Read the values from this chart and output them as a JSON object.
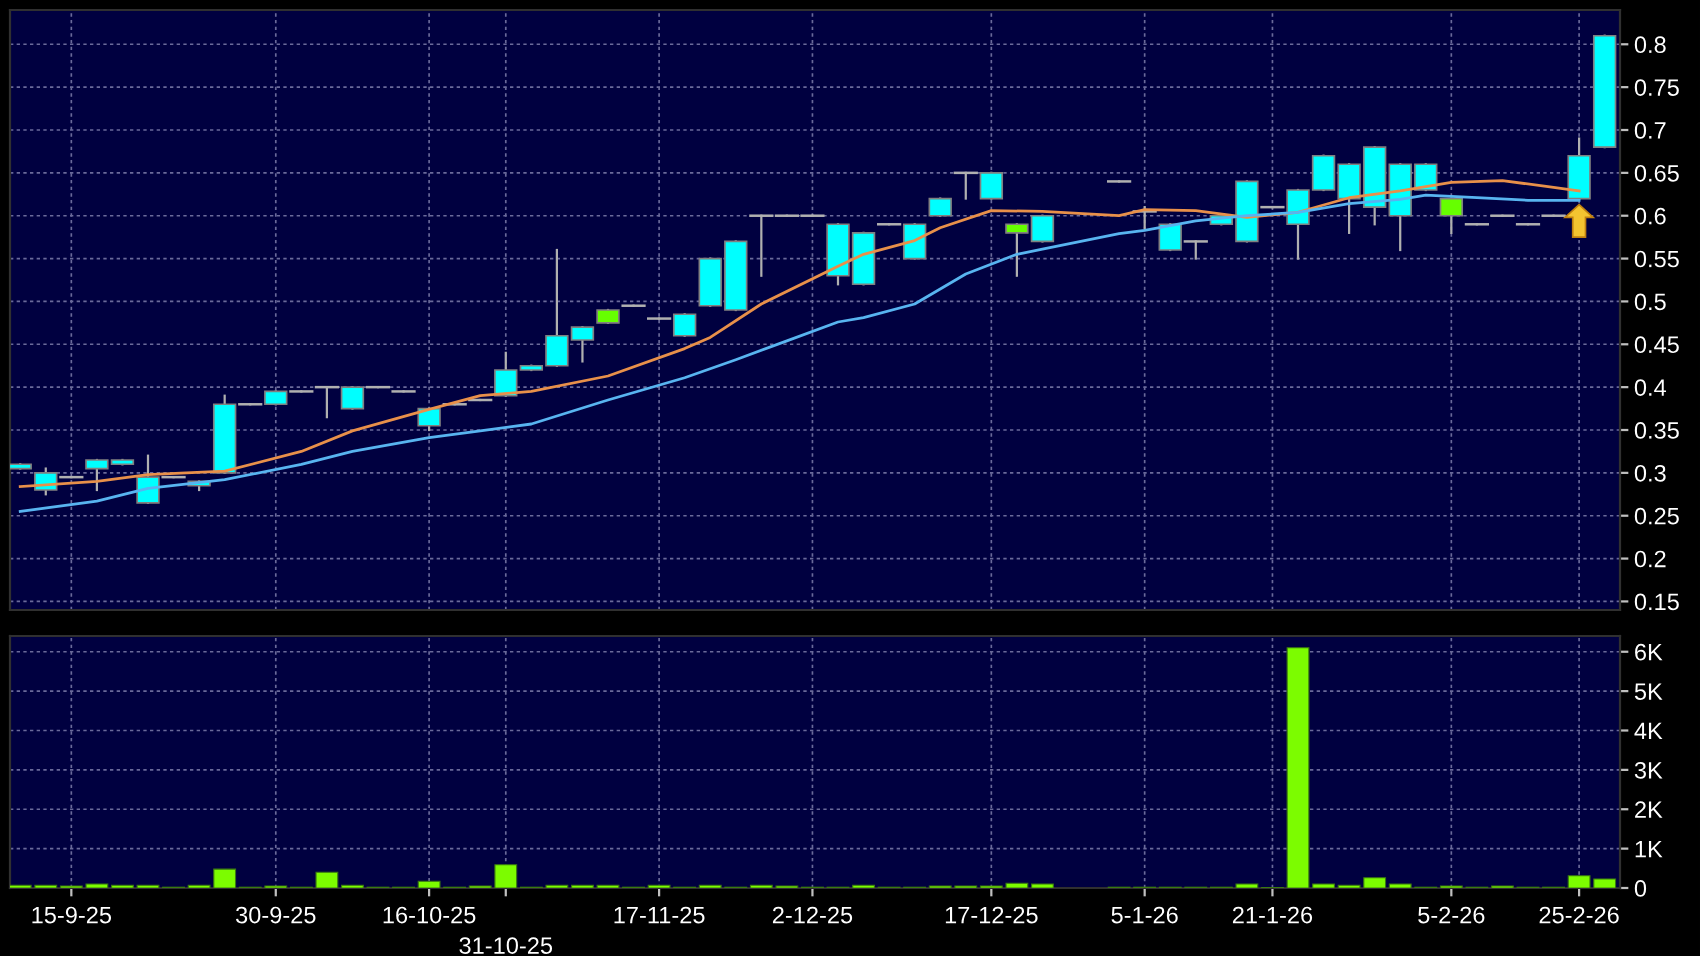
{
  "chart_data": [
    {
      "type": "candlestick",
      "categories": [
        null,
        null,
        null,
        null,
        null,
        null,
        null,
        null,
        null,
        null,
        null,
        null,
        null,
        null,
        null,
        null,
        null,
        null,
        null,
        null,
        null,
        null,
        null,
        null,
        null,
        null,
        null,
        null,
        null,
        null,
        null,
        null,
        null,
        null,
        null,
        null,
        null,
        null,
        null,
        null,
        null,
        null,
        null,
        null,
        null,
        null,
        null,
        null,
        null,
        null,
        null,
        null,
        null,
        null,
        null,
        null,
        null,
        null,
        null,
        null,
        null,
        null,
        null
      ],
      "ohlc": [
        [
          0.305,
          0.31,
          0.305,
          0.31
        ],
        [
          0.28,
          0.305,
          0.275,
          0.3
        ],
        [
          0.295,
          0.295,
          0.295,
          0.295
        ],
        [
          0.305,
          0.315,
          0.28,
          0.315
        ],
        [
          0.31,
          0.315,
          0.31,
          0.315
        ],
        [
          0.265,
          0.32,
          0.265,
          0.295
        ],
        [
          0.295,
          0.295,
          0.295,
          0.295
        ],
        [
          0.285,
          0.29,
          0.28,
          0.29
        ],
        [
          0.3,
          0.39,
          0.3,
          0.38
        ],
        [
          0.38,
          0.38,
          0.38,
          0.38
        ],
        [
          0.38,
          0.395,
          0.38,
          0.395
        ],
        [
          0.395,
          0.395,
          0.395,
          0.395
        ],
        [
          0.4,
          0.4,
          0.365,
          0.4
        ],
        [
          0.375,
          0.4,
          0.375,
          0.4
        ],
        [
          0.4,
          0.4,
          0.4,
          0.4
        ],
        [
          0.395,
          0.395,
          0.395,
          0.395
        ],
        [
          0.355,
          0.375,
          0.35,
          0.375
        ],
        [
          0.38,
          0.38,
          0.38,
          0.38
        ],
        [
          0.385,
          0.385,
          0.385,
          0.385
        ],
        [
          0.39,
          0.44,
          0.39,
          0.42
        ],
        [
          0.42,
          0.425,
          0.42,
          0.425
        ],
        [
          0.425,
          0.56,
          0.425,
          0.46
        ],
        [
          0.455,
          0.47,
          0.43,
          0.47
        ],
        [
          0.49,
          0.49,
          0.475,
          0.475
        ],
        [
          0.495,
          0.495,
          0.495,
          0.495
        ],
        [
          0.48,
          0.48,
          0.48,
          0.48
        ],
        [
          0.46,
          0.485,
          0.46,
          0.485
        ],
        [
          0.495,
          0.55,
          0.495,
          0.55
        ],
        [
          0.49,
          0.57,
          0.49,
          0.57
        ],
        [
          0.6,
          0.6,
          0.53,
          0.6
        ],
        [
          0.6,
          0.6,
          0.6,
          0.6
        ],
        [
          0.6,
          0.6,
          0.6,
          0.6
        ],
        [
          0.53,
          0.59,
          0.52,
          0.59
        ],
        [
          0.52,
          0.58,
          0.52,
          0.58
        ],
        [
          0.59,
          0.59,
          0.59,
          0.59
        ],
        [
          0.55,
          0.59,
          0.55,
          0.59
        ],
        [
          0.6,
          0.62,
          0.6,
          0.62
        ],
        [
          0.65,
          0.65,
          0.62,
          0.65
        ],
        [
          0.62,
          0.65,
          0.62,
          0.65
        ],
        [
          0.59,
          0.59,
          0.53,
          0.58
        ],
        [
          0.57,
          0.6,
          0.57,
          0.6
        ],
        null,
        null,
        [
          0.64,
          0.64,
          0.64,
          0.64
        ],
        [
          0.605,
          0.61,
          0.585,
          0.605
        ],
        [
          0.56,
          0.59,
          0.56,
          0.59
        ],
        [
          0.57,
          0.57,
          0.55,
          0.57
        ],
        [
          0.59,
          0.6,
          0.59,
          0.6
        ],
        [
          0.57,
          0.64,
          0.57,
          0.64
        ],
        [
          0.61,
          0.61,
          0.61,
          0.61
        ],
        [
          0.59,
          0.63,
          0.55,
          0.63
        ],
        [
          0.63,
          0.67,
          0.63,
          0.67
        ],
        [
          0.62,
          0.66,
          0.58,
          0.66
        ],
        [
          0.61,
          0.68,
          0.59,
          0.68
        ],
        [
          0.6,
          0.66,
          0.56,
          0.66
        ],
        [
          0.63,
          0.66,
          0.63,
          0.66
        ],
        [
          0.62,
          0.62,
          0.58,
          0.6
        ],
        [
          0.59,
          0.59,
          0.59,
          0.59
        ],
        [
          0.6,
          0.6,
          0.6,
          0.6
        ],
        [
          0.59,
          0.59,
          0.59,
          0.59
        ],
        [
          0.6,
          0.6,
          0.6,
          0.6
        ],
        [
          0.62,
          0.69,
          0.62,
          0.67
        ],
        [
          0.68,
          0.81,
          0.68,
          0.81
        ]
      ],
      "colors": [
        "#00ffff",
        "#00ffff",
        "#b0b0b0",
        "#00ffff",
        "#00ffff",
        "#00ffff",
        "#b0b0b0",
        "#00ffff",
        "#00ffff",
        "#b0b0b0",
        "#00ffff",
        "#b0b0b0",
        "#b0b0b0",
        "#00ffff",
        "#b0b0b0",
        "#b0b0b0",
        "#00ffff",
        "#b0b0b0",
        "#b0b0b0",
        "#00ffff",
        "#00ffff",
        "#00ffff",
        "#00ffff",
        "#66ff00",
        "#b0b0b0",
        "#b0b0b0",
        "#00ffff",
        "#00ffff",
        "#00ffff",
        "#b0b0b0",
        "#b0b0b0",
        "#b0b0b0",
        "#00ffff",
        "#00ffff",
        "#b0b0b0",
        "#00ffff",
        "#00ffff",
        "#b0b0b0",
        "#00ffff",
        "#66ff00",
        "#00ffff",
        null,
        null,
        "#b0b0b0",
        "#b0b0b0",
        "#00ffff",
        "#b0b0b0",
        "#00ffff",
        "#00ffff",
        "#b0b0b0",
        "#00ffff",
        "#00ffff",
        "#00ffff",
        "#00ffff",
        "#00ffff",
        "#00ffff",
        "#66ff00",
        "#b0b0b0",
        "#b0b0b0",
        "#b0b0b0",
        "#b0b0b0",
        "#00ffff",
        "#00ffff"
      ],
      "series": [
        {
          "type": "line",
          "color": "#e8904a",
          "values": [
            0.284,
            null,
            null,
            0.29,
            null,
            0.298,
            null,
            null,
            0.302,
            null,
            null,
            0.325,
            null,
            0.349,
            null,
            null,
            0.374,
            null,
            0.39,
            null,
            0.395,
            null,
            null,
            0.413,
            null,
            null,
            0.445,
            0.458,
            null,
            0.497,
            null,
            null,
            0.541,
            0.555,
            null,
            0.571,
            0.586,
            null,
            0.606,
            null,
            0.605,
            null,
            null,
            0.6,
            0.607,
            null,
            0.606,
            null,
            0.598,
            null,
            0.604,
            null,
            0.621,
            null,
            0.629,
            null,
            0.639,
            null,
            0.641,
            null,
            0.633,
            0.629,
            null
          ]
        },
        {
          "type": "line",
          "color": "#58b4f0",
          "values": [
            0.255,
            null,
            null,
            0.267,
            null,
            0.282,
            null,
            null,
            0.292,
            null,
            null,
            0.31,
            null,
            0.325,
            null,
            null,
            0.341,
            null,
            0.349,
            null,
            0.357,
            null,
            null,
            0.385,
            null,
            null,
            0.411,
            null,
            0.432,
            null,
            0.454,
            null,
            0.476,
            0.481,
            null,
            0.497,
            null,
            0.532,
            null,
            0.555,
            0.561,
            null,
            null,
            0.579,
            0.583,
            null,
            0.594,
            null,
            0.6,
            null,
            0.604,
            null,
            0.614,
            null,
            0.619,
            0.624,
            null,
            0.621,
            null,
            0.618,
            null,
            0.618,
            null
          ]
        }
      ],
      "ylim": [
        0.14,
        0.84
      ],
      "yticks": [
        0.15,
        0.2,
        0.25,
        0.3,
        0.35,
        0.4,
        0.45,
        0.5,
        0.55,
        0.6,
        0.65,
        0.7,
        0.75,
        0.8
      ],
      "grid": true,
      "tick_labels": "y"
    },
    {
      "type": "bar",
      "categories": [
        null,
        null,
        "15-9-25",
        null,
        null,
        null,
        null,
        null,
        null,
        null,
        "30-9-25",
        null,
        null,
        null,
        null,
        null,
        "16-10-25",
        null,
        null,
        "31-10-25",
        null,
        null,
        null,
        null,
        null,
        "17-11-25",
        null,
        null,
        null,
        null,
        null,
        "2-12-25",
        null,
        null,
        null,
        null,
        null,
        null,
        "17-12-25",
        null,
        null,
        null,
        null,
        null,
        "5-1-26",
        null,
        null,
        null,
        null,
        "21-1-26",
        null,
        null,
        null,
        null,
        null,
        null,
        "5-2-26",
        null,
        null,
        null,
        null,
        "25-2-26",
        null
      ],
      "values": [
        70,
        70,
        50,
        100,
        70,
        70,
        20,
        70,
        480,
        20,
        50,
        20,
        400,
        70,
        20,
        20,
        170,
        20,
        50,
        590,
        20,
        70,
        70,
        70,
        20,
        70,
        20,
        70,
        20,
        70,
        50,
        20,
        20,
        70,
        20,
        20,
        50,
        50,
        50,
        120,
        100,
        null,
        null,
        20,
        20,
        20,
        20,
        20,
        100,
        10,
        6100,
        100,
        70,
        260,
        100,
        20,
        50,
        20,
        50,
        20,
        20,
        310,
        230
      ],
      "color": "#7cfc00",
      "ylim": [
        0,
        6400
      ],
      "yticks": [
        0,
        {
          "value": 1000,
          "label": "1K"
        },
        {
          "value": 2000,
          "label": "2K"
        },
        {
          "value": 3000,
          "label": "3K"
        },
        {
          "value": 4000,
          "label": "4K"
        },
        {
          "value": 5000,
          "label": "5K"
        },
        {
          "value": 6000,
          "label": "6K"
        }
      ],
      "grid": true
    }
  ]
}
